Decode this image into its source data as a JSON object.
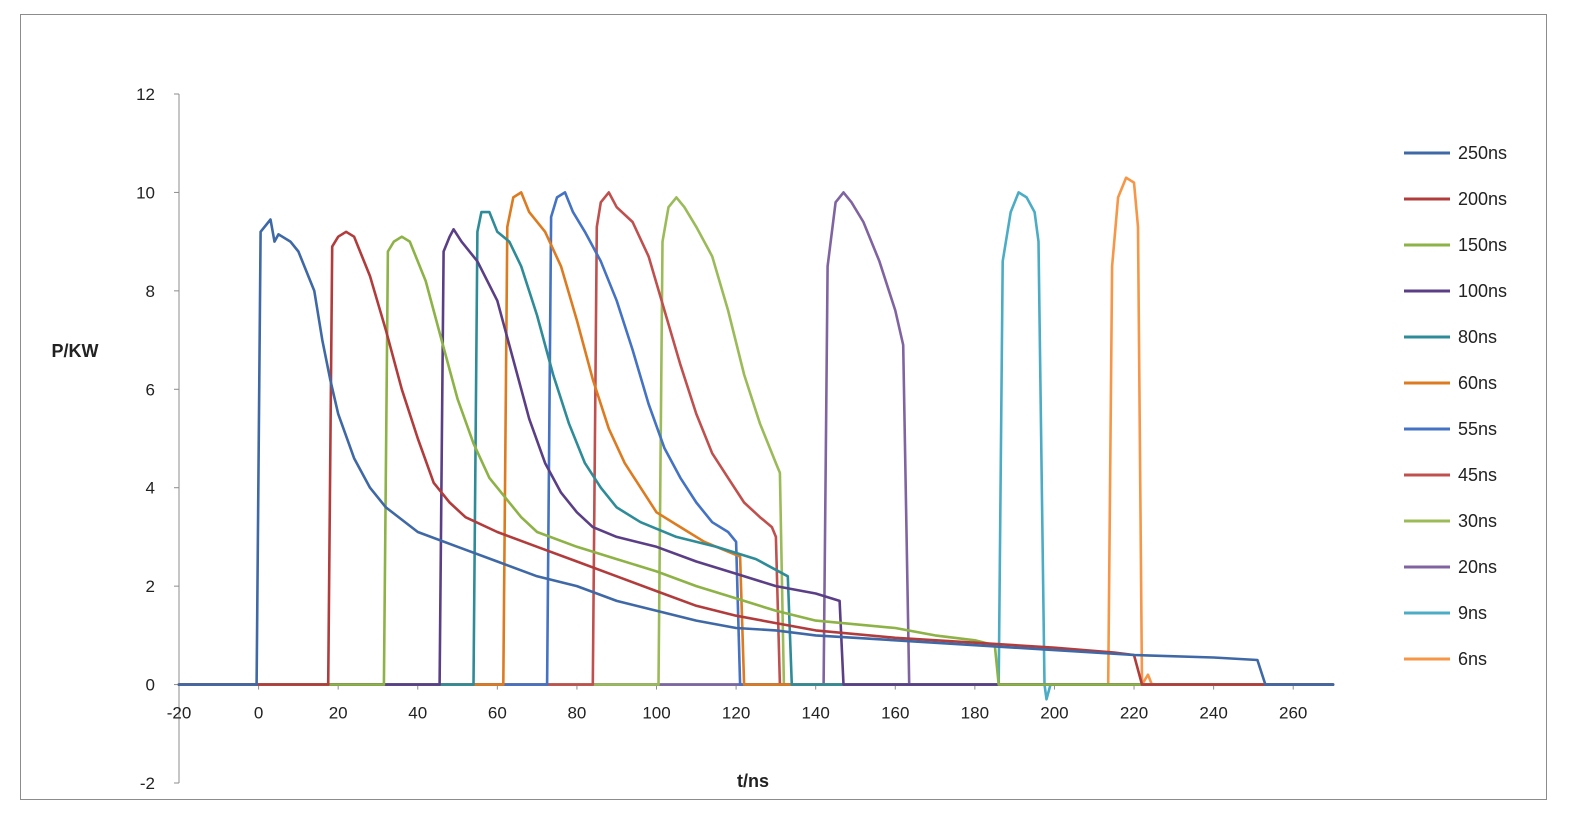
{
  "chart_data": {
    "type": "line",
    "title": "",
    "xlabel": "t/ns",
    "ylabel": "P/KW",
    "xlim": [
      -20,
      270
    ],
    "ylim": [
      -2,
      12
    ],
    "x_ticks": [
      -20,
      0,
      20,
      40,
      60,
      80,
      100,
      120,
      140,
      160,
      180,
      200,
      220,
      240,
      260
    ],
    "y_ticks": [
      -2,
      0,
      2,
      4,
      6,
      8,
      10,
      12
    ],
    "grid": false,
    "legend_position": "right",
    "baseline_x_range": [
      -20,
      270
    ],
    "series": [
      {
        "name": "250ns",
        "color": "#3f68a6",
        "points": [
          [
            -20,
            0
          ],
          [
            -0.5,
            0
          ],
          [
            0.5,
            9.2
          ],
          [
            3,
            9.45
          ],
          [
            4,
            9.0
          ],
          [
            5,
            9.15
          ],
          [
            8,
            9.0
          ],
          [
            10,
            8.8
          ],
          [
            14,
            8.0
          ],
          [
            16,
            7.0
          ],
          [
            18,
            6.2
          ],
          [
            20,
            5.5
          ],
          [
            24,
            4.6
          ],
          [
            28,
            4.0
          ],
          [
            32,
            3.6
          ],
          [
            40,
            3.1
          ],
          [
            50,
            2.8
          ],
          [
            60,
            2.5
          ],
          [
            70,
            2.2
          ],
          [
            80,
            2.0
          ],
          [
            90,
            1.7
          ],
          [
            100,
            1.5
          ],
          [
            110,
            1.3
          ],
          [
            120,
            1.15
          ],
          [
            130,
            1.1
          ],
          [
            140,
            1.0
          ],
          [
            160,
            0.9
          ],
          [
            180,
            0.8
          ],
          [
            200,
            0.7
          ],
          [
            220,
            0.6
          ],
          [
            240,
            0.55
          ],
          [
            251,
            0.5
          ],
          [
            253,
            0.0
          ],
          [
            270,
            0
          ]
        ]
      },
      {
        "name": "200ns",
        "color": "#b23c3c",
        "points": [
          [
            -20,
            0
          ],
          [
            17.5,
            0
          ],
          [
            18.5,
            8.9
          ],
          [
            20,
            9.1
          ],
          [
            22,
            9.2
          ],
          [
            24,
            9.1
          ],
          [
            28,
            8.3
          ],
          [
            32,
            7.2
          ],
          [
            36,
            6.0
          ],
          [
            40,
            5.0
          ],
          [
            44,
            4.1
          ],
          [
            48,
            3.7
          ],
          [
            52,
            3.4
          ],
          [
            60,
            3.1
          ],
          [
            70,
            2.8
          ],
          [
            80,
            2.5
          ],
          [
            90,
            2.2
          ],
          [
            100,
            1.9
          ],
          [
            110,
            1.6
          ],
          [
            120,
            1.4
          ],
          [
            130,
            1.25
          ],
          [
            140,
            1.1
          ],
          [
            160,
            0.95
          ],
          [
            180,
            0.85
          ],
          [
            200,
            0.75
          ],
          [
            215,
            0.65
          ],
          [
            220,
            0.6
          ],
          [
            222,
            0
          ],
          [
            270,
            0
          ]
        ]
      },
      {
        "name": "150ns",
        "color": "#8db246",
        "points": [
          [
            -20,
            0
          ],
          [
            31.5,
            0
          ],
          [
            32.5,
            8.8
          ],
          [
            34,
            9.0
          ],
          [
            36,
            9.1
          ],
          [
            38,
            9.0
          ],
          [
            42,
            8.2
          ],
          [
            46,
            7.0
          ],
          [
            50,
            5.8
          ],
          [
            54,
            4.9
          ],
          [
            58,
            4.2
          ],
          [
            62,
            3.8
          ],
          [
            66,
            3.4
          ],
          [
            70,
            3.1
          ],
          [
            80,
            2.8
          ],
          [
            90,
            2.55
          ],
          [
            100,
            2.3
          ],
          [
            110,
            2.0
          ],
          [
            120,
            1.75
          ],
          [
            130,
            1.5
          ],
          [
            140,
            1.3
          ],
          [
            160,
            1.15
          ],
          [
            170,
            1.0
          ],
          [
            180,
            0.9
          ],
          [
            185,
            0.8
          ],
          [
            186,
            0
          ],
          [
            270,
            0
          ]
        ]
      },
      {
        "name": "100ns",
        "color": "#5b3f86",
        "points": [
          [
            -20,
            0
          ],
          [
            45.5,
            0
          ],
          [
            46.5,
            8.8
          ],
          [
            48,
            9.1
          ],
          [
            49,
            9.25
          ],
          [
            51,
            9.0
          ],
          [
            55,
            8.6
          ],
          [
            60,
            7.8
          ],
          [
            64,
            6.6
          ],
          [
            68,
            5.4
          ],
          [
            72,
            4.5
          ],
          [
            76,
            3.9
          ],
          [
            80,
            3.5
          ],
          [
            84,
            3.2
          ],
          [
            90,
            3.0
          ],
          [
            100,
            2.8
          ],
          [
            110,
            2.5
          ],
          [
            120,
            2.25
          ],
          [
            130,
            2.0
          ],
          [
            140,
            1.85
          ],
          [
            146,
            1.7
          ],
          [
            147,
            0
          ],
          [
            270,
            0
          ]
        ]
      },
      {
        "name": "80ns",
        "color": "#2e8c99",
        "points": [
          [
            -20,
            0
          ],
          [
            54,
            0
          ],
          [
            55,
            9.2
          ],
          [
            56,
            9.6
          ],
          [
            58,
            9.6
          ],
          [
            60,
            9.2
          ],
          [
            63,
            9.0
          ],
          [
            66,
            8.5
          ],
          [
            70,
            7.5
          ],
          [
            74,
            6.3
          ],
          [
            78,
            5.3
          ],
          [
            82,
            4.5
          ],
          [
            86,
            4.0
          ],
          [
            90,
            3.6
          ],
          [
            96,
            3.3
          ],
          [
            105,
            3.0
          ],
          [
            115,
            2.8
          ],
          [
            125,
            2.55
          ],
          [
            133,
            2.2
          ],
          [
            134,
            0
          ],
          [
            270,
            0
          ]
        ]
      },
      {
        "name": "60ns",
        "color": "#dd7b20",
        "points": [
          [
            -20,
            0
          ],
          [
            61.5,
            0
          ],
          [
            62.5,
            9.3
          ],
          [
            64,
            9.9
          ],
          [
            66,
            10.0
          ],
          [
            68,
            9.6
          ],
          [
            72,
            9.2
          ],
          [
            76,
            8.5
          ],
          [
            80,
            7.4
          ],
          [
            84,
            6.2
          ],
          [
            88,
            5.2
          ],
          [
            92,
            4.5
          ],
          [
            96,
            4.0
          ],
          [
            100,
            3.5
          ],
          [
            106,
            3.2
          ],
          [
            112,
            2.9
          ],
          [
            118,
            2.7
          ],
          [
            121,
            2.6
          ],
          [
            122,
            0
          ],
          [
            270,
            0
          ]
        ]
      },
      {
        "name": "55ns",
        "color": "#4472c4",
        "points": [
          [
            -20,
            0
          ],
          [
            72.5,
            0
          ],
          [
            73.5,
            9.5
          ],
          [
            75,
            9.9
          ],
          [
            77,
            10.0
          ],
          [
            79,
            9.6
          ],
          [
            82,
            9.2
          ],
          [
            86,
            8.6
          ],
          [
            90,
            7.8
          ],
          [
            94,
            6.8
          ],
          [
            98,
            5.7
          ],
          [
            102,
            4.8
          ],
          [
            106,
            4.2
          ],
          [
            110,
            3.7
          ],
          [
            114,
            3.3
          ],
          [
            118,
            3.1
          ],
          [
            120,
            2.9
          ],
          [
            121,
            0
          ],
          [
            270,
            0
          ]
        ]
      },
      {
        "name": "45ns",
        "color": "#c0504d",
        "points": [
          [
            -20,
            0
          ],
          [
            84,
            0
          ],
          [
            85,
            9.3
          ],
          [
            86,
            9.8
          ],
          [
            88,
            10.0
          ],
          [
            90,
            9.7
          ],
          [
            94,
            9.4
          ],
          [
            98,
            8.7
          ],
          [
            102,
            7.6
          ],
          [
            106,
            6.5
          ],
          [
            110,
            5.5
          ],
          [
            114,
            4.7
          ],
          [
            118,
            4.2
          ],
          [
            122,
            3.7
          ],
          [
            126,
            3.4
          ],
          [
            129,
            3.2
          ],
          [
            130,
            3.0
          ],
          [
            131,
            0
          ],
          [
            270,
            0
          ]
        ]
      },
      {
        "name": "30ns",
        "color": "#9bbb59",
        "points": [
          [
            -20,
            0
          ],
          [
            100.5,
            0
          ],
          [
            101.5,
            9.0
          ],
          [
            103,
            9.7
          ],
          [
            105,
            9.9
          ],
          [
            107,
            9.7
          ],
          [
            110,
            9.3
          ],
          [
            114,
            8.7
          ],
          [
            118,
            7.6
          ],
          [
            122,
            6.3
          ],
          [
            126,
            5.3
          ],
          [
            130,
            4.5
          ],
          [
            131,
            4.3
          ],
          [
            132,
            0
          ],
          [
            270,
            0
          ]
        ]
      },
      {
        "name": "20ns",
        "color": "#8064a2",
        "points": [
          [
            -20,
            0
          ],
          [
            142,
            0
          ],
          [
            143,
            8.5
          ],
          [
            145,
            9.8
          ],
          [
            147,
            10.0
          ],
          [
            149,
            9.8
          ],
          [
            152,
            9.4
          ],
          [
            156,
            8.6
          ],
          [
            160,
            7.6
          ],
          [
            162,
            6.9
          ],
          [
            163.5,
            0
          ],
          [
            270,
            0
          ]
        ]
      },
      {
        "name": "9ns",
        "color": "#4bacc6",
        "points": [
          [
            -20,
            0
          ],
          [
            186,
            0
          ],
          [
            187,
            8.6
          ],
          [
            189,
            9.6
          ],
          [
            191,
            10.0
          ],
          [
            193,
            9.9
          ],
          [
            195,
            9.6
          ],
          [
            196,
            9.0
          ],
          [
            197.5,
            0
          ],
          [
            198,
            -0.3
          ],
          [
            199,
            0
          ],
          [
            270,
            0
          ]
        ]
      },
      {
        "name": "6ns",
        "color": "#f79646",
        "points": [
          [
            -20,
            0
          ],
          [
            213.5,
            0
          ],
          [
            214.5,
            8.5
          ],
          [
            216,
            9.9
          ],
          [
            218,
            10.3
          ],
          [
            220,
            10.2
          ],
          [
            221,
            9.3
          ],
          [
            222,
            0
          ],
          [
            223.5,
            0.2
          ],
          [
            224.5,
            0
          ],
          [
            270,
            0
          ]
        ]
      }
    ]
  }
}
